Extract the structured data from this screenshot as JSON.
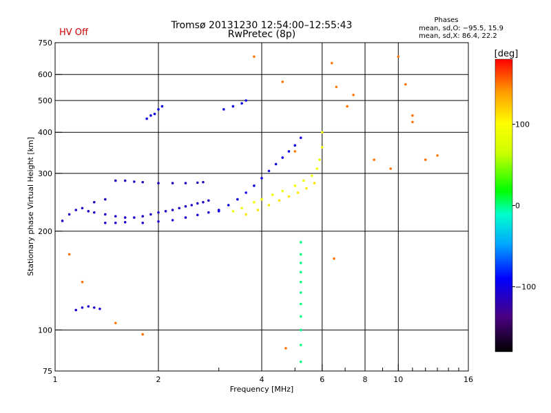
{
  "header": {
    "status": "HV Off",
    "status_color": "#cc0000",
    "title_line1": "Tromsø 20131230 12:54:00–12:55:43",
    "title_line2": "RwPretec (8p)",
    "phase_heading": "Phases",
    "phase_o": "mean, sd,O: −95.5, 15.9",
    "phase_x": "mean, sd,X:  86.4, 22.2"
  },
  "chart_data": {
    "type": "scatter",
    "title": "Tromsø 20131230 12:54:00–12:55:43",
    "subtitle": "RwPretec (8p)",
    "xlabel": "Frequency [MHz]",
    "ylabel": "Stationary phase Virtual Height [km]",
    "xscale": "log",
    "yscale": "log",
    "xlim": [
      1,
      16
    ],
    "ylim": [
      75,
      750
    ],
    "xticks": [
      1,
      2,
      4,
      6,
      8,
      10,
      16
    ],
    "xtick_labels": [
      "1",
      "2",
      "4",
      "6",
      "8",
      "10",
      "16"
    ],
    "xminor": [
      3,
      5,
      7,
      9,
      11,
      12,
      13,
      14,
      15
    ],
    "yticks": [
      75,
      100,
      200,
      300,
      400,
      500,
      600,
      750
    ],
    "ytick_labels": [
      "75",
      "100",
      "200",
      "300",
      "400",
      "500",
      "600",
      "750"
    ],
    "colorbar": {
      "label": "[deg]",
      "range": [
        -180,
        180
      ],
      "ticks": [
        100,
        0,
        -100
      ],
      "tick_labels": [
        "100",
        "0",
        "−100"
      ]
    },
    "series": [
      {
        "name": "O-mode echo band, low",
        "phase_deg": -110,
        "points": [
          [
            1.05,
            215
          ],
          [
            1.1,
            225
          ],
          [
            1.15,
            232
          ],
          [
            1.2,
            235
          ],
          [
            1.25,
            230
          ],
          [
            1.3,
            228
          ],
          [
            1.4,
            225
          ],
          [
            1.5,
            222
          ],
          [
            1.6,
            220
          ],
          [
            1.7,
            220
          ],
          [
            1.8,
            222
          ],
          [
            1.9,
            225
          ],
          [
            2.0,
            228
          ],
          [
            2.1,
            230
          ],
          [
            2.2,
            232
          ],
          [
            2.3,
            235
          ],
          [
            2.4,
            238
          ],
          [
            2.5,
            240
          ],
          [
            2.6,
            243
          ],
          [
            2.7,
            245
          ],
          [
            2.8,
            248
          ]
        ]
      },
      {
        "name": "O-mode echo band, lower trace",
        "phase_deg": -105,
        "points": [
          [
            1.4,
            212
          ],
          [
            1.5,
            212
          ],
          [
            1.6,
            213
          ],
          [
            1.8,
            212
          ],
          [
            2.0,
            214
          ],
          [
            2.2,
            216
          ],
          [
            2.4,
            220
          ],
          [
            2.6,
            224
          ],
          [
            2.8,
            228
          ],
          [
            3.0,
            232
          ]
        ]
      },
      {
        "name": "O-mode echo, near 280 km",
        "phase_deg": -115,
        "points": [
          [
            1.3,
            245
          ],
          [
            1.4,
            250
          ],
          [
            1.5,
            285
          ],
          [
            1.6,
            285
          ],
          [
            1.7,
            283
          ],
          [
            1.8,
            282
          ],
          [
            2.0,
            280
          ],
          [
            2.2,
            280
          ],
          [
            2.4,
            280
          ],
          [
            2.6,
            281
          ],
          [
            2.7,
            282
          ]
        ]
      },
      {
        "name": "O-mode echo, steep F trace",
        "phase_deg": -100,
        "points": [
          [
            3.0,
            230
          ],
          [
            3.2,
            240
          ],
          [
            3.4,
            250
          ],
          [
            3.6,
            262
          ],
          [
            3.8,
            275
          ],
          [
            4.0,
            290
          ],
          [
            4.2,
            305
          ],
          [
            4.4,
            320
          ],
          [
            4.6,
            335
          ],
          [
            4.8,
            350
          ],
          [
            5.0,
            365
          ],
          [
            5.2,
            385
          ]
        ]
      },
      {
        "name": "X-mode echo trace",
        "phase_deg": 90,
        "points": [
          [
            3.3,
            230
          ],
          [
            3.5,
            235
          ],
          [
            3.8,
            245
          ],
          [
            4.0,
            250
          ],
          [
            4.3,
            258
          ],
          [
            4.6,
            265
          ],
          [
            5.0,
            275
          ],
          [
            5.3,
            285
          ],
          [
            5.6,
            295
          ],
          [
            5.8,
            310
          ],
          [
            5.9,
            330
          ],
          [
            6.0,
            360
          ],
          [
            6.0,
            400
          ]
        ]
      },
      {
        "name": "X-mode echo, secondary",
        "phase_deg": 110,
        "points": [
          [
            3.6,
            225
          ],
          [
            3.9,
            232
          ],
          [
            4.2,
            240
          ],
          [
            4.5,
            248
          ],
          [
            4.8,
            255
          ],
          [
            5.1,
            262
          ],
          [
            5.4,
            270
          ],
          [
            5.7,
            280
          ]
        ]
      },
      {
        "name": "Echo cluster near 470 km",
        "phase_deg": -100,
        "points": [
          [
            1.85,
            440
          ],
          [
            1.9,
            450
          ],
          [
            1.95,
            455
          ],
          [
            2.0,
            470
          ],
          [
            2.05,
            480
          ],
          [
            3.1,
            470
          ],
          [
            3.3,
            480
          ],
          [
            3.5,
            490
          ],
          [
            3.6,
            500
          ]
        ]
      },
      {
        "name": "Echo cluster near 117 km",
        "phase_deg": -105,
        "points": [
          [
            1.15,
            115
          ],
          [
            1.2,
            117
          ],
          [
            1.25,
            118
          ],
          [
            1.3,
            117
          ],
          [
            1.35,
            116
          ]
        ]
      },
      {
        "name": "Interference line 5.2 MHz",
        "phase_deg": 0,
        "points": [
          [
            5.2,
            80
          ],
          [
            5.2,
            90
          ],
          [
            5.2,
            100
          ],
          [
            5.2,
            110
          ],
          [
            5.2,
            120
          ],
          [
            5.2,
            130
          ],
          [
            5.2,
            140
          ],
          [
            5.2,
            150
          ],
          [
            5.2,
            160
          ],
          [
            5.2,
            170
          ],
          [
            5.2,
            185
          ]
        ]
      },
      {
        "name": "Scattered echoes",
        "phase_deg": 150,
        "points": [
          [
            3.8,
            680
          ],
          [
            4.6,
            570
          ],
          [
            5.0,
            350
          ],
          [
            6.4,
            650
          ],
          [
            6.6,
            550
          ],
          [
            7.1,
            480
          ],
          [
            7.4,
            520
          ],
          [
            8.5,
            330
          ],
          [
            9.5,
            310
          ],
          [
            10,
            680
          ],
          [
            10.5,
            560
          ],
          [
            11,
            450
          ],
          [
            11,
            430
          ],
          [
            12,
            330
          ],
          [
            13,
            340
          ],
          [
            1.1,
            170
          ],
          [
            1.2,
            140
          ],
          [
            1.5,
            105
          ],
          [
            1.8,
            97
          ],
          [
            4.7,
            88
          ],
          [
            6.5,
            165
          ]
        ]
      }
    ]
  }
}
